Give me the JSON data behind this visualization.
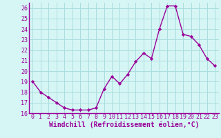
{
  "x": [
    0,
    1,
    2,
    3,
    4,
    5,
    6,
    7,
    8,
    9,
    10,
    11,
    12,
    13,
    14,
    15,
    16,
    17,
    18,
    19,
    20,
    21,
    22,
    23
  ],
  "y": [
    19,
    18,
    17.5,
    17,
    16.5,
    16.3,
    16.3,
    16.3,
    16.5,
    18.3,
    19.5,
    18.8,
    19.7,
    20.9,
    21.7,
    21.2,
    24.0,
    26.2,
    26.2,
    23.5,
    23.3,
    22.5,
    21.2,
    20.5
  ],
  "line_color": "#990099",
  "marker": "D",
  "marker_size": 2.2,
  "bg_color": "#d6f5f5",
  "grid_color": "#aadddd",
  "xlabel": "Windchill (Refroidissement éolien,°C)",
  "xlabel_color": "#990099",
  "tick_color": "#990099",
  "ylim": [
    16,
    26.5
  ],
  "xlim": [
    -0.5,
    23.5
  ],
  "yticks": [
    16,
    17,
    18,
    19,
    20,
    21,
    22,
    23,
    24,
    25,
    26
  ],
  "xticks": [
    0,
    1,
    2,
    3,
    4,
    5,
    6,
    7,
    8,
    9,
    10,
    11,
    12,
    13,
    14,
    15,
    16,
    17,
    18,
    19,
    20,
    21,
    22,
    23
  ],
  "tick_fontsize": 6.0,
  "xlabel_fontsize": 7.0,
  "line_width": 1.0,
  "axis_color": "#990099"
}
